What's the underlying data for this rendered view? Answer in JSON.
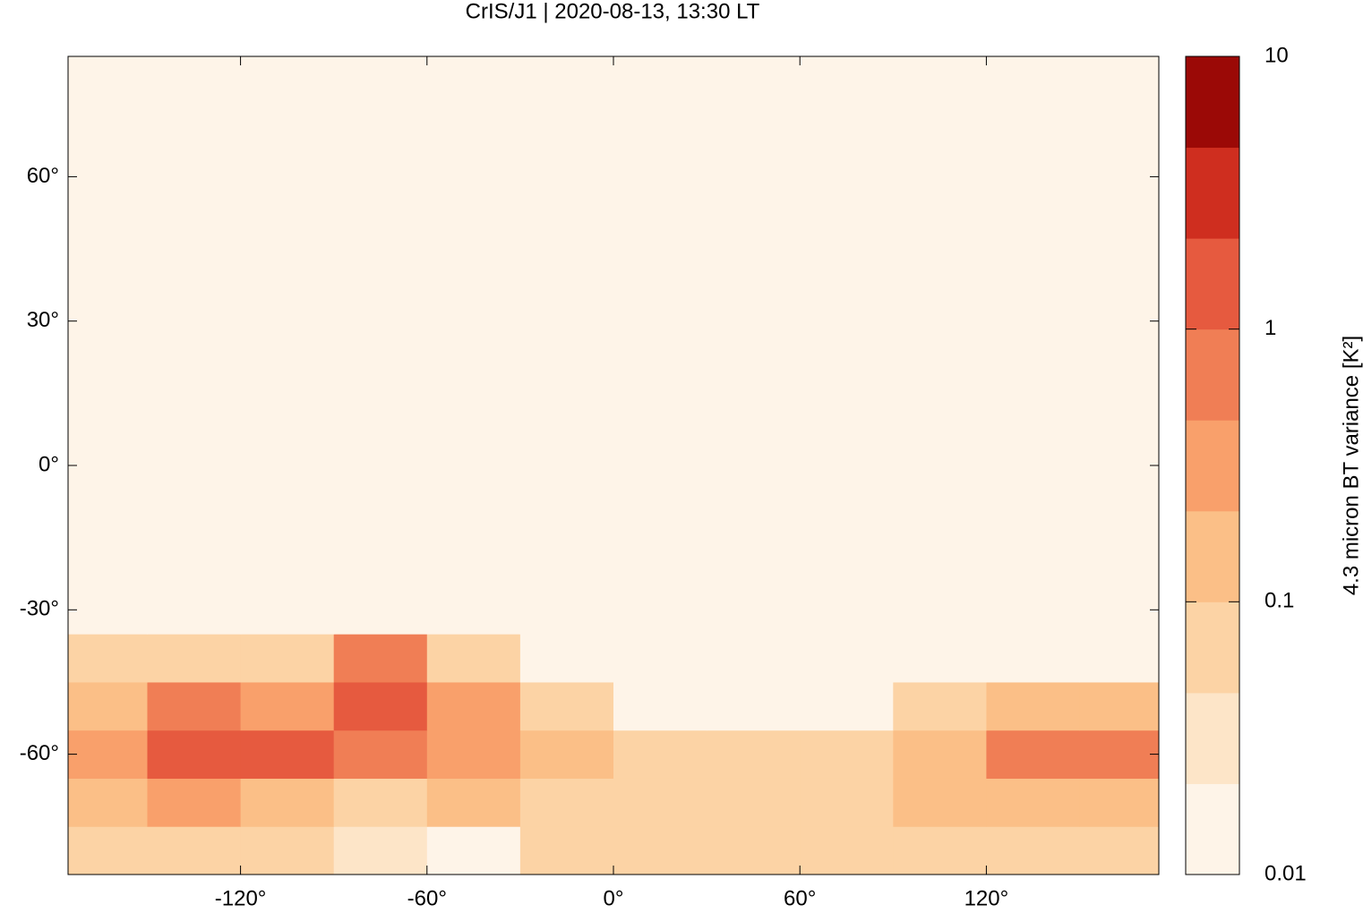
{
  "chart_data": {
    "type": "heatmap",
    "title": "CrIS/J1 | 2020-08-13, 13:30 LT",
    "xlim": [
      -175.5,
      175.5
    ],
    "ylim": [
      -85,
      85
    ],
    "xticks": [
      {
        "value": -120,
        "label": "-120°"
      },
      {
        "value": -60,
        "label": "-60°"
      },
      {
        "value": 0,
        "label": "0°"
      },
      {
        "value": 60,
        "label": "60°"
      },
      {
        "value": 120,
        "label": "120°"
      }
    ],
    "yticks": [
      {
        "value": -60,
        "label": "-60°"
      },
      {
        "value": -30,
        "label": "-30°"
      },
      {
        "value": 0,
        "label": "0°"
      },
      {
        "value": 30,
        "label": "30°"
      },
      {
        "value": 60,
        "label": "60°"
      }
    ],
    "x_edges": [
      -175.5,
      -150,
      -120,
      -90,
      -60,
      -30,
      0,
      30,
      60,
      90,
      120,
      150,
      175.5
    ],
    "y_edges": [
      -85,
      -75,
      -65,
      -55,
      -45,
      -35,
      85
    ],
    "z": [
      [
        0.05,
        0.05,
        0.05,
        0.03,
        0.02,
        0.05,
        0.05,
        0.05,
        0.05,
        0.05,
        0.05,
        0.05
      ],
      [
        0.2,
        0.3,
        0.2,
        0.05,
        0.1,
        0.05,
        0.05,
        0.05,
        0.05,
        0.1,
        0.1,
        0.1
      ],
      [
        0.3,
        1,
        1,
        0.5,
        0.3,
        0.2,
        0.05,
        0.05,
        0.05,
        0.1,
        0.5,
        0.5
      ],
      [
        0.2,
        0.5,
        0.3,
        1,
        0.3,
        0.05,
        0.02,
        0.02,
        0.02,
        0.05,
        0.2,
        0.2
      ],
      [
        0.05,
        0.05,
        0.05,
        0.5,
        0.05,
        0.02,
        0.01,
        0.01,
        0.01,
        0.01,
        0.02,
        0.02
      ],
      [
        0.01,
        0.01,
        0.01,
        0.01,
        0.01,
        0.01,
        0.01,
        0.01,
        0.01,
        0.01,
        0.01,
        0.01
      ]
    ],
    "colorbar": {
      "label": "4.3 micron BT variance [K²]",
      "lim": [
        0.01,
        10
      ],
      "ticks": [
        0.01,
        0.1,
        1,
        10
      ],
      "log": true,
      "colors": [
        "#fef4e8",
        "#fde5c8",
        "#fcd3a5",
        "#fbbf87",
        "#f9a06b",
        "#f07e55",
        "#e65a3f",
        "#cf2e1f",
        "#9b0906"
      ]
    }
  }
}
